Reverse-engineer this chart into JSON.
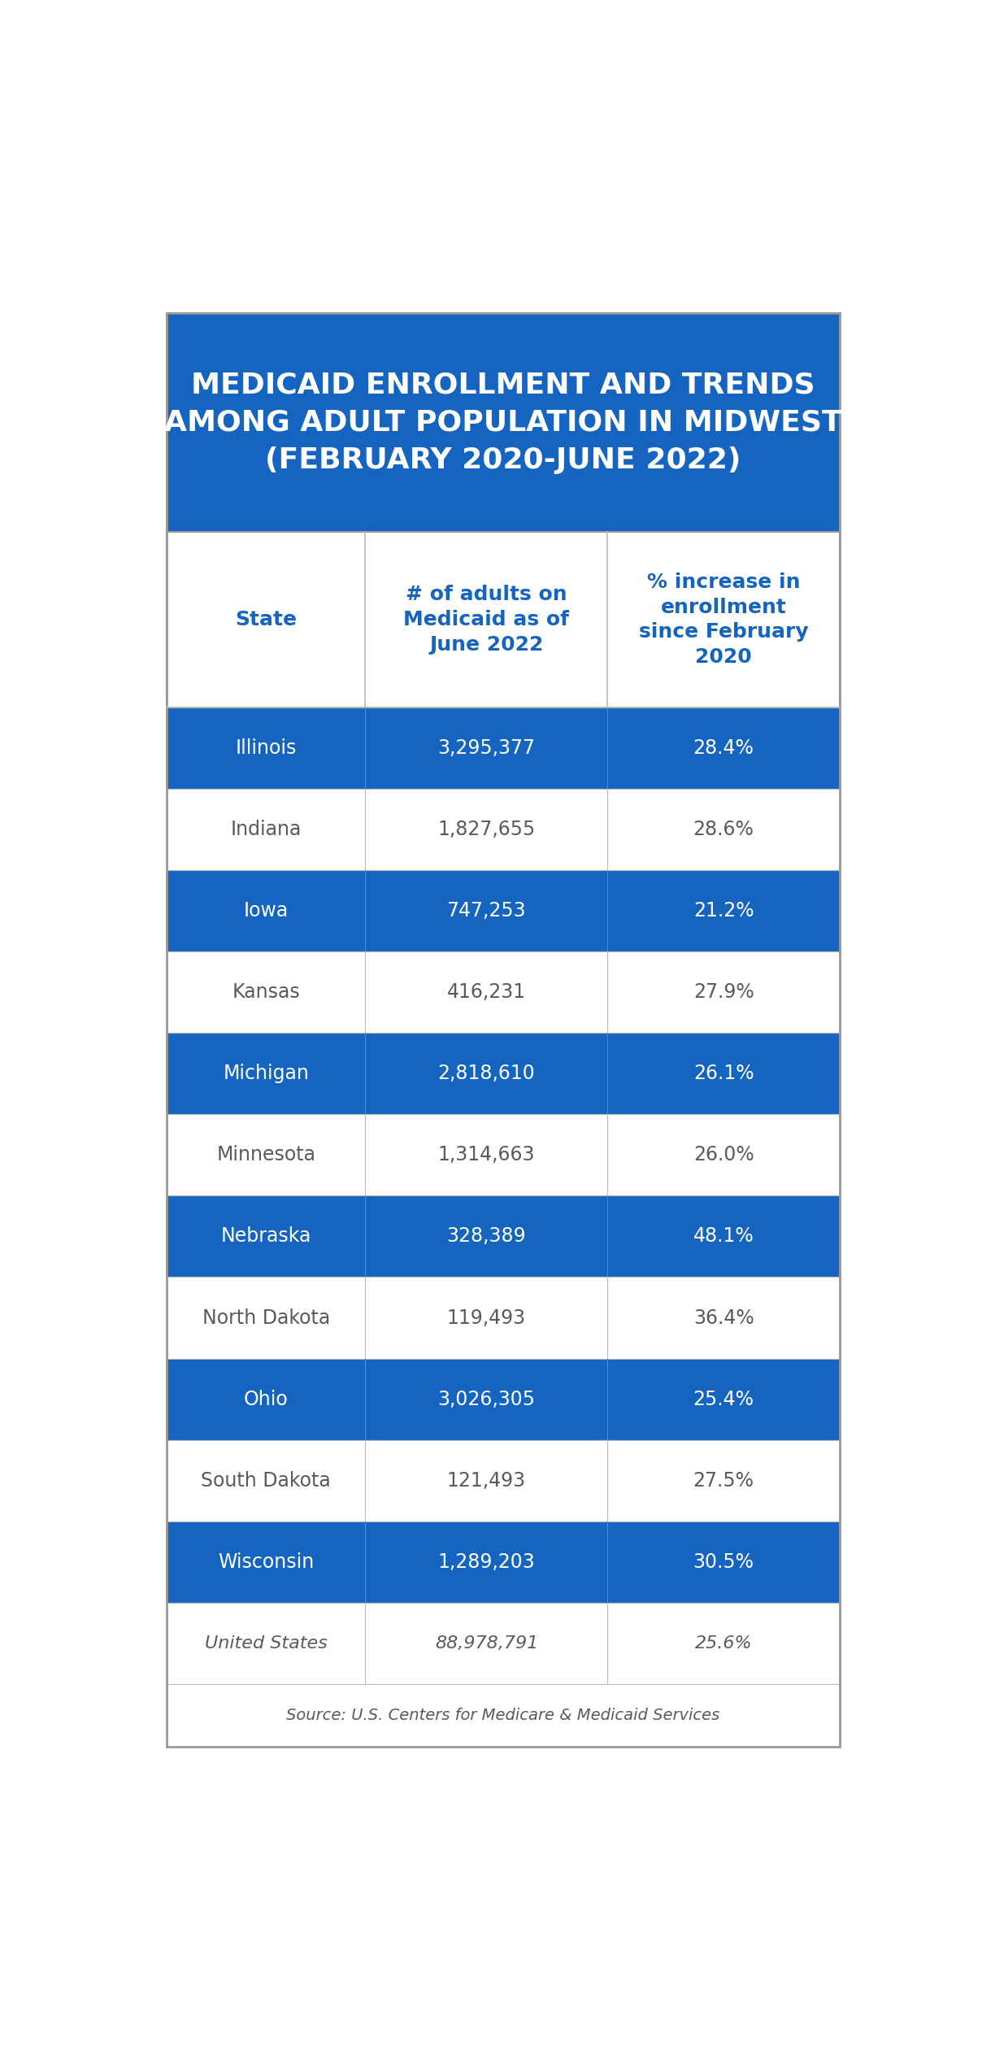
{
  "title_line1": "MEDICAID ENROLLMENT AND TRENDS",
  "title_line2": "AMONG ADULT POPULATION IN MIDWEST",
  "title_line3": "(FEBRUARY 2020-JUNE 2022)",
  "header_col1": "State",
  "header_col2": "# of adults on\nMedicaid as of\nJune 2022",
  "header_col3": "% increase in\nenrollment\nsince February\n2020",
  "rows": [
    {
      "state": "Illinois",
      "enrollment": "3,295,377",
      "pct": "28.4%",
      "blue": true
    },
    {
      "state": "Indiana",
      "enrollment": "1,827,655",
      "pct": "28.6%",
      "blue": false
    },
    {
      "state": "Iowa",
      "enrollment": "747,253",
      "pct": "21.2%",
      "blue": true
    },
    {
      "state": "Kansas",
      "enrollment": "416,231",
      "pct": "27.9%",
      "blue": false
    },
    {
      "state": "Michigan",
      "enrollment": "2,818,610",
      "pct": "26.1%",
      "blue": true
    },
    {
      "state": "Minnesota",
      "enrollment": "1,314,663",
      "pct": "26.0%",
      "blue": false
    },
    {
      "state": "Nebraska",
      "enrollment": "328,389",
      "pct": "48.1%",
      "blue": true
    },
    {
      "state": "North Dakota",
      "enrollment": "119,493",
      "pct": "36.4%",
      "blue": false
    },
    {
      "state": "Ohio",
      "enrollment": "3,026,305",
      "pct": "25.4%",
      "blue": true
    },
    {
      "state": "South Dakota",
      "enrollment": "121,493",
      "pct": "27.5%",
      "blue": false
    },
    {
      "state": "Wisconsin",
      "enrollment": "1,289,203",
      "pct": "30.5%",
      "blue": true
    }
  ],
  "us_row": {
    "state": "United States",
    "enrollment": "88,978,791",
    "pct": "25.6%"
  },
  "source": "Source: U.S. Centers for Medicare & Medicaid Services",
  "title_bg": "#1565C0",
  "row_blue_bg": "#1565C0",
  "row_white_bg": "#FFFFFF",
  "header_bg": "#FFFFFF",
  "title_text_color": "#FFFFFF",
  "header_text_color": "#1565C0",
  "blue_row_text_color": "#FFFFFF",
  "white_row_text_color": "#5a5a5a",
  "us_row_text_color": "#5a5a5a",
  "border_color": "#bbbbbb",
  "outer_border_color": "#999999",
  "fig_bg": "#FFFFFF"
}
